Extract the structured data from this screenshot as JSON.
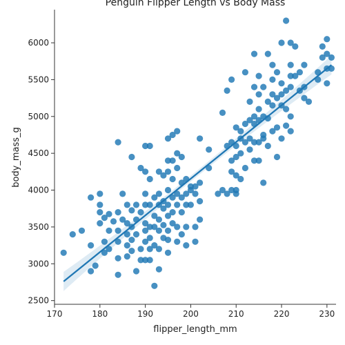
{
  "chart_data": {
    "type": "scatter",
    "title": "Penguin Flipper Length vs Body Mass",
    "xlabel": "flipper_length_mm",
    "ylabel": "body_mass_g",
    "xlim": [
      170,
      232
    ],
    "ylim": [
      2450,
      6450
    ],
    "xticks": [
      170,
      180,
      190,
      200,
      210,
      220,
      230
    ],
    "yticks": [
      2500,
      3000,
      3500,
      4000,
      4500,
      5000,
      5500,
      6000
    ],
    "grid": false,
    "legend": "none",
    "regression": {
      "x_start": 172,
      "y_start": 2760,
      "x_end": 231,
      "y_end": 5700
    },
    "colors": {
      "points": "#1f77b4",
      "line": "#1f77b4",
      "band": "#1f77b4"
    },
    "points": [
      [
        172,
        3150
      ],
      [
        174,
        3400
      ],
      [
        176,
        3450
      ],
      [
        178,
        3900
      ],
      [
        178,
        3250
      ],
      [
        178,
        2900
      ],
      [
        179,
        2975
      ],
      [
        180,
        3800
      ],
      [
        180,
        3700
      ],
      [
        180,
        3550
      ],
      [
        180,
        3950
      ],
      [
        181,
        3625
      ],
      [
        181,
        3300
      ],
      [
        181,
        3150
      ],
      [
        182,
        3200
      ],
      [
        182,
        3450
      ],
      [
        182,
        3675
      ],
      [
        183,
        3575
      ],
      [
        184,
        4650
      ],
      [
        184,
        3700
      ],
      [
        184,
        3450
      ],
      [
        184,
        3300
      ],
      [
        184,
        3075
      ],
      [
        184,
        2850
      ],
      [
        185,
        3600
      ],
      [
        185,
        3950
      ],
      [
        186,
        3800
      ],
      [
        186,
        3550
      ],
      [
        186,
        3400
      ],
      [
        186,
        3250
      ],
      [
        186,
        3100
      ],
      [
        187,
        4450
      ],
      [
        187,
        3725
      ],
      [
        187,
        3500
      ],
      [
        187,
        3325
      ],
      [
        187,
        3175
      ],
      [
        188,
        3800
      ],
      [
        188,
        3600
      ],
      [
        188,
        3400
      ],
      [
        188,
        2900
      ],
      [
        189,
        4300
      ],
      [
        189,
        3700
      ],
      [
        189,
        3200
      ],
      [
        189,
        3050
      ],
      [
        190,
        4600
      ],
      [
        190,
        4250
      ],
      [
        190,
        3950
      ],
      [
        190,
        3800
      ],
      [
        190,
        3550
      ],
      [
        190,
        3450
      ],
      [
        190,
        3300
      ],
      [
        190,
        3050
      ],
      [
        191,
        4600
      ],
      [
        191,
        4150
      ],
      [
        191,
        3800
      ],
      [
        191,
        3500
      ],
      [
        191,
        3350
      ],
      [
        191,
        3200
      ],
      [
        191,
        3050
      ],
      [
        192,
        3900
      ],
      [
        192,
        3650
      ],
      [
        192,
        3500
      ],
      [
        192,
        3250
      ],
      [
        192,
        2700
      ],
      [
        193,
        4250
      ],
      [
        193,
        3950
      ],
      [
        193,
        3800
      ],
      [
        193,
        3600
      ],
      [
        193,
        3450
      ],
      [
        193,
        3200
      ],
      [
        193,
        2925
      ],
      [
        194,
        4200
      ],
      [
        194,
        3850
      ],
      [
        194,
        3750
      ],
      [
        194,
        3525
      ],
      [
        194,
        3350
      ],
      [
        195,
        4700
      ],
      [
        195,
        4400
      ],
      [
        195,
        4250
      ],
      [
        195,
        4000
      ],
      [
        195,
        3800
      ],
      [
        195,
        3650
      ],
      [
        195,
        3450
      ],
      [
        195,
        3325
      ],
      [
        195,
        3150
      ],
      [
        196,
        4750
      ],
      [
        196,
        4400
      ],
      [
        196,
        4150
      ],
      [
        196,
        3900
      ],
      [
        196,
        3700
      ],
      [
        196,
        3550
      ],
      [
        197,
        4800
      ],
      [
        197,
        4500
      ],
      [
        197,
        4300
      ],
      [
        197,
        3950
      ],
      [
        197,
        3800
      ],
      [
        197,
        3500
      ],
      [
        197,
        3300
      ],
      [
        198,
        4450
      ],
      [
        198,
        4100
      ],
      [
        198,
        3900
      ],
      [
        198,
        3700
      ],
      [
        198,
        3400
      ],
      [
        199,
        4150
      ],
      [
        199,
        3950
      ],
      [
        199,
        3800
      ],
      [
        199,
        3500
      ],
      [
        199,
        3250
      ],
      [
        200,
        4050
      ],
      [
        200,
        4000
      ],
      [
        200,
        3800
      ],
      [
        201,
        4050
      ],
      [
        201,
        3950
      ],
      [
        201,
        3500
      ],
      [
        201,
        3300
      ],
      [
        202,
        4700
      ],
      [
        202,
        4100
      ],
      [
        202,
        3850
      ],
      [
        202,
        3600
      ],
      [
        204,
        4550
      ],
      [
        204,
        4300
      ],
      [
        206,
        3950
      ],
      [
        207,
        5050
      ],
      [
        207,
        4000
      ],
      [
        208,
        5350
      ],
      [
        208,
        4600
      ],
      [
        208,
        3950
      ],
      [
        209,
        5500
      ],
      [
        209,
        4650
      ],
      [
        209,
        4400
      ],
      [
        209,
        4250
      ],
      [
        209,
        4000
      ],
      [
        210,
        4850
      ],
      [
        210,
        4600
      ],
      [
        210,
        4450
      ],
      [
        210,
        4200
      ],
      [
        210,
        4000
      ],
      [
        210,
        3950
      ],
      [
        211,
        4800
      ],
      [
        211,
        4700
      ],
      [
        211,
        4500
      ],
      [
        211,
        4150
      ],
      [
        212,
        5600
      ],
      [
        212,
        4900
      ],
      [
        212,
        4650
      ],
      [
        212,
        4300
      ],
      [
        213,
        5200
      ],
      [
        213,
        4950
      ],
      [
        213,
        4700
      ],
      [
        213,
        4550
      ],
      [
        214,
        5850
      ],
      [
        214,
        5400
      ],
      [
        214,
        5000
      ],
      [
        214,
        4900
      ],
      [
        214,
        4650
      ],
      [
        214,
        4400
      ],
      [
        215,
        5550
      ],
      [
        215,
        5300
      ],
      [
        215,
        5100
      ],
      [
        215,
        4950
      ],
      [
        215,
        4650
      ],
      [
        215,
        4400
      ],
      [
        216,
        5400
      ],
      [
        216,
        5000
      ],
      [
        216,
        4750
      ],
      [
        216,
        4700
      ],
      [
        216,
        4100
      ],
      [
        217,
        5850
      ],
      [
        217,
        5200
      ],
      [
        217,
        4975
      ],
      [
        217,
        4600
      ],
      [
        218,
        5700
      ],
      [
        218,
        5500
      ],
      [
        218,
        5300
      ],
      [
        218,
        5150
      ],
      [
        218,
        4800
      ],
      [
        219,
        5600
      ],
      [
        219,
        5250
      ],
      [
        219,
        4850
      ],
      [
        219,
        4450
      ],
      [
        220,
        6000
      ],
      [
        220,
        5450
      ],
      [
        220,
        5300
      ],
      [
        220,
        5150
      ],
      [
        220,
        4700
      ],
      [
        221,
        6300
      ],
      [
        221,
        5350
      ],
      [
        221,
        5100
      ],
      [
        221,
        4875
      ],
      [
        222,
        6000
      ],
      [
        222,
        5700
      ],
      [
        222,
        5550
      ],
      [
        222,
        5400
      ],
      [
        222,
        5000
      ],
      [
        222,
        4800
      ],
      [
        223,
        5950
      ],
      [
        223,
        5550
      ],
      [
        224,
        5600
      ],
      [
        224,
        5350
      ],
      [
        225,
        5700
      ],
      [
        225,
        5400
      ],
      [
        225,
        5250
      ],
      [
        226,
        5200
      ],
      [
        228,
        5600
      ],
      [
        228,
        5500
      ],
      [
        229,
        5800
      ],
      [
        229,
        5950
      ],
      [
        230,
        6050
      ],
      [
        230,
        5850
      ],
      [
        230,
        5650
      ],
      [
        230,
        5450
      ],
      [
        231,
        5650
      ],
      [
        231,
        5800
      ]
    ]
  }
}
